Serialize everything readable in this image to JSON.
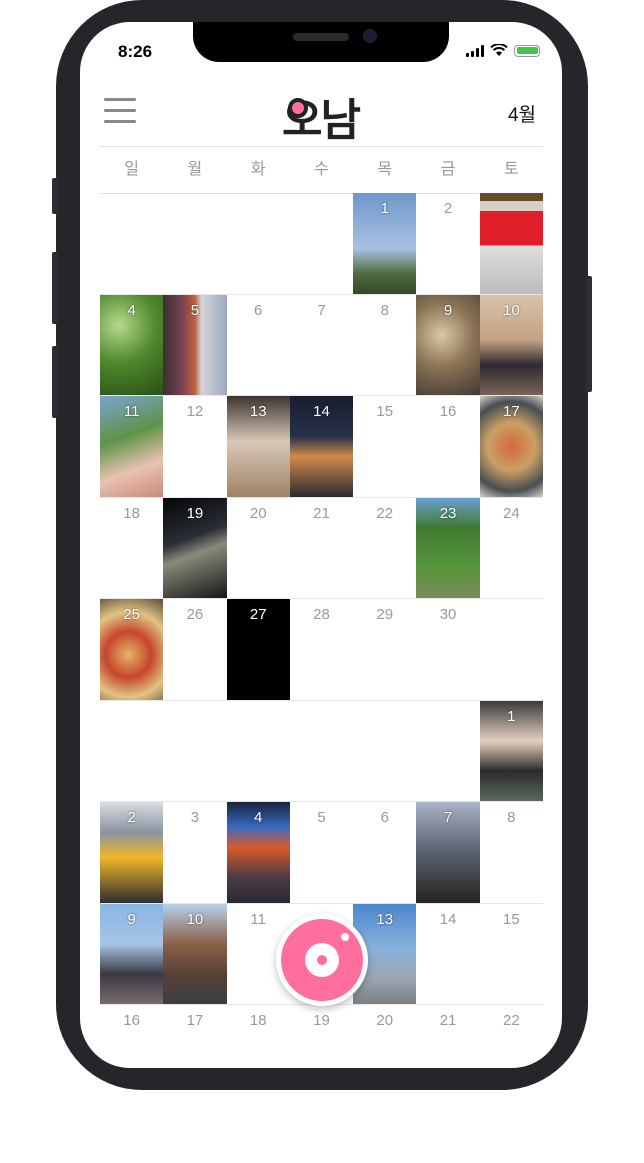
{
  "status_bar": {
    "time": "8:26"
  },
  "header": {
    "logo": "오남",
    "month": "4월",
    "menu_icon": "hamburger-menu-icon"
  },
  "weekdays": [
    "일",
    "월",
    "화",
    "수",
    "목",
    "금",
    "토"
  ],
  "calendar": {
    "rows": [
      [
        {
          "day": ""
        },
        {
          "day": ""
        },
        {
          "day": ""
        },
        {
          "day": ""
        },
        {
          "day": "1",
          "photo": "sky-tree-photo"
        },
        {
          "day": "2"
        },
        {
          "day": "",
          "photo": "uniqlo-badge-photo"
        }
      ],
      [
        {
          "day": "4",
          "photo": "green-trees-photo"
        },
        {
          "day": "5",
          "photo": "bus-interior-photo"
        },
        {
          "day": "6"
        },
        {
          "day": "7"
        },
        {
          "day": "8"
        },
        {
          "day": "9",
          "photo": "food-table-photo"
        },
        {
          "day": "10",
          "photo": "group-friends-photo"
        }
      ],
      [
        {
          "day": "11",
          "photo": "peace-sign-trees-photo"
        },
        {
          "day": "12"
        },
        {
          "day": "13",
          "photo": "selfie-masks-photo"
        },
        {
          "day": "14",
          "photo": "night-street-photo"
        },
        {
          "day": "15"
        },
        {
          "day": "16"
        },
        {
          "day": "17",
          "photo": "pizza-spread-photo"
        }
      ],
      [
        {
          "day": "18"
        },
        {
          "day": "19",
          "photo": "night-highway-photo"
        },
        {
          "day": "20"
        },
        {
          "day": "21"
        },
        {
          "day": "22"
        },
        {
          "day": "23",
          "photo": "forest-path-photo"
        },
        {
          "day": "24"
        }
      ],
      [
        {
          "day": "25",
          "photo": "pizza-photo"
        },
        {
          "day": "26"
        },
        {
          "day": "27",
          "photo": "black-photo"
        },
        {
          "day": "28"
        },
        {
          "day": "29"
        },
        {
          "day": "30"
        },
        {
          "day": ""
        }
      ],
      [
        {
          "day": ""
        },
        {
          "day": ""
        },
        {
          "day": ""
        },
        {
          "day": ""
        },
        {
          "day": ""
        },
        {
          "day": ""
        },
        {
          "day": "1",
          "photo": "cafe-selfie-photo"
        }
      ],
      [
        {
          "day": "2",
          "photo": "teddy-bear-car-photo"
        },
        {
          "day": "3"
        },
        {
          "day": "4",
          "photo": "times-square-photo"
        },
        {
          "day": "5"
        },
        {
          "day": "6"
        },
        {
          "day": "7",
          "photo": "city-night-person-photo"
        },
        {
          "day": "8"
        }
      ],
      [
        {
          "day": "9",
          "photo": "person-arms-up-photo"
        },
        {
          "day": "10",
          "photo": "dumbo-bridge-photo"
        },
        {
          "day": "11"
        },
        {
          "day": ""
        },
        {
          "day": "13",
          "photo": "street-blue-sky-photo"
        },
        {
          "day": "14"
        },
        {
          "day": "15"
        }
      ],
      [
        {
          "day": "16"
        },
        {
          "day": "17"
        },
        {
          "day": "18"
        },
        {
          "day": "19"
        },
        {
          "day": "20"
        },
        {
          "day": "21"
        },
        {
          "day": "22"
        }
      ]
    ]
  },
  "fab": {
    "icon": "camera-icon"
  },
  "colors": {
    "accent": "#ff6e9c"
  }
}
